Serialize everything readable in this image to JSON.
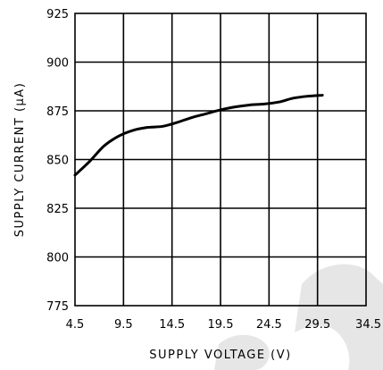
{
  "chart_data": {
    "type": "line",
    "title": "",
    "xlabel": "SUPPLY VOLTAGE (V)",
    "ylabel": "SUPPLY CURRENT (μA)",
    "xlim": [
      4.5,
      34.5
    ],
    "ylim": [
      775,
      925
    ],
    "x_ticks": [
      "4.5",
      "9.5",
      "14.5",
      "19.5",
      "24.5",
      "29.5",
      "34.5"
    ],
    "y_ticks": [
      "925",
      "900",
      "875",
      "850",
      "825",
      "800",
      "775"
    ],
    "grid": true,
    "legend": "none",
    "series": [
      {
        "x": [
          4.5,
          6.0,
          7.5,
          9.0,
          10.5,
          12.0,
          13.5,
          15.0,
          16.5,
          18.0,
          19.5,
          21.0,
          22.5,
          24.0,
          25.5,
          27.0,
          28.5,
          30.0
        ],
        "y": [
          842,
          849,
          857,
          862,
          865,
          866.5,
          867,
          869,
          871.5,
          873.5,
          875.5,
          877,
          878,
          878.5,
          879.5,
          881.5,
          882.5,
          883
        ]
      }
    ]
  },
  "colors": {
    "line": "#000000",
    "grid": "#000000",
    "background": "#ffffff",
    "watermark": "#e6e6e6"
  }
}
